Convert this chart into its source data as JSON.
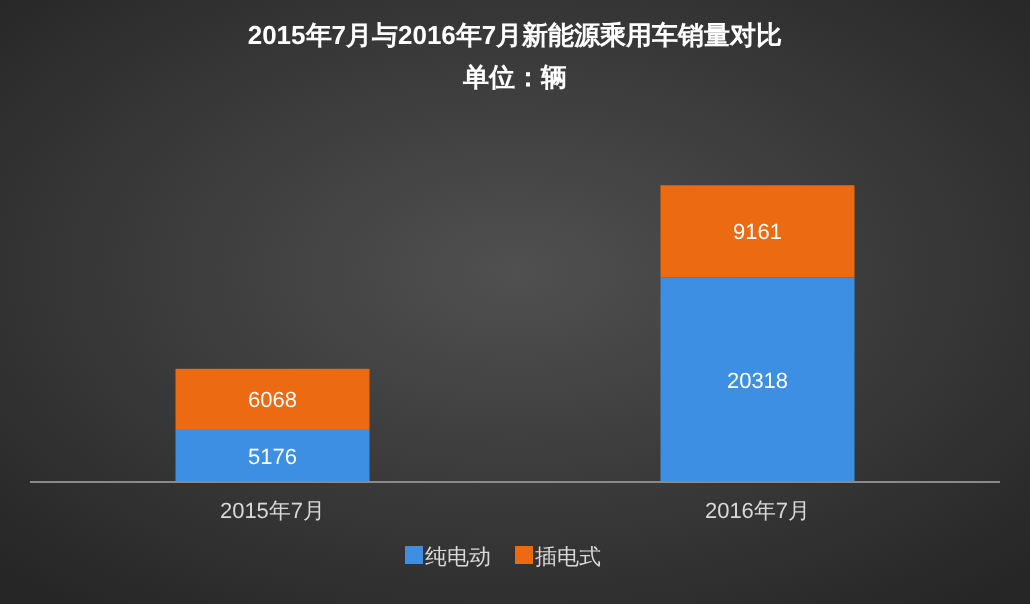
{
  "chart_data": {
    "type": "bar",
    "title": "2015年7月与2016年7月新能源乘用车销量对比",
    "subtitle": "单位：辆",
    "categories": [
      "2015年7月",
      "2016年7月"
    ],
    "stacked": true,
    "data_labels": true,
    "legend": "bottom",
    "grid": false,
    "series": [
      {
        "name": "纯电动",
        "color": "#3c8fe3",
        "values": [
          5176,
          20318
        ]
      },
      {
        "name": "插电式",
        "color": "#ec6a12",
        "values": [
          6068,
          9161
        ]
      }
    ]
  }
}
